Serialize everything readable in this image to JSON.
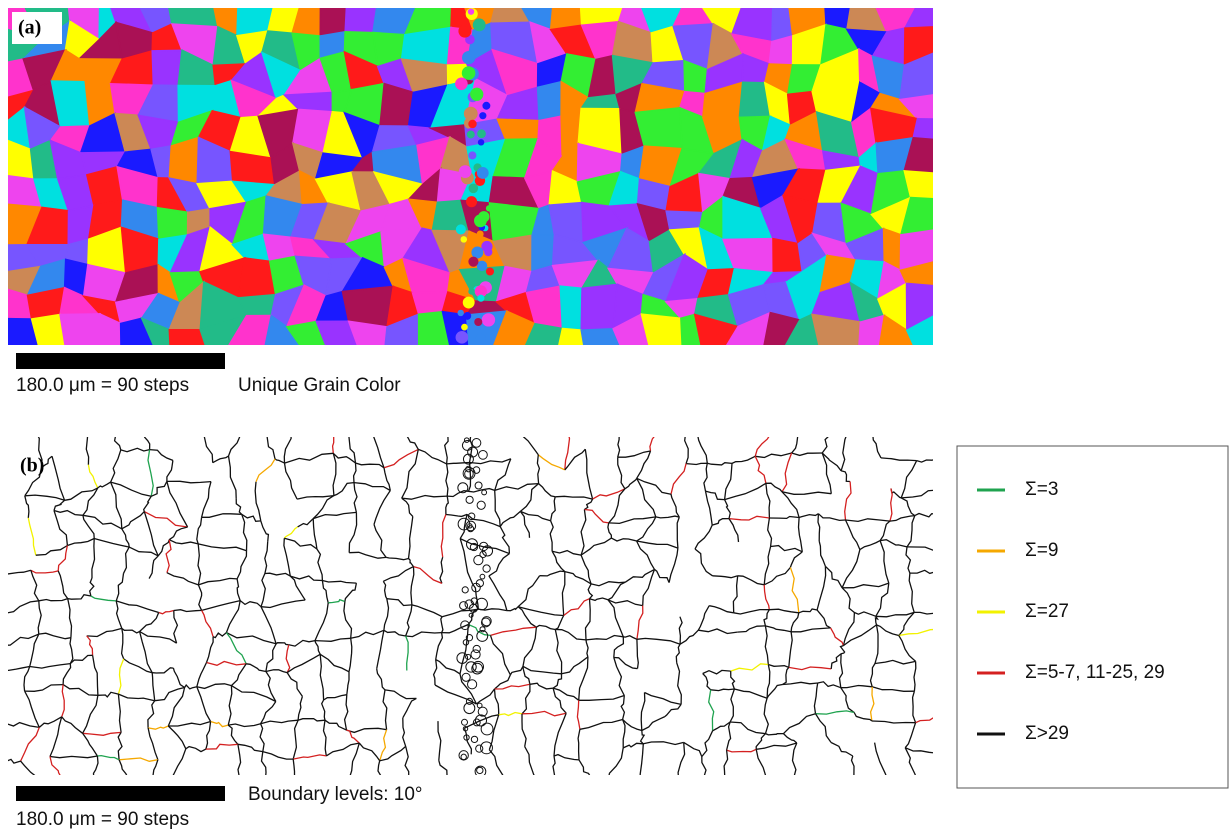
{
  "panel_a": {
    "label": "(a)",
    "scale_bar": "180.0 μm = 90 steps",
    "caption": "Unique Grain Color"
  },
  "panel_b": {
    "label": "(b)",
    "scale_bar": "180.0 μm = 90 steps",
    "caption": "Boundary levels: 10°"
  },
  "legend": {
    "items": [
      {
        "label": "Σ=3",
        "color": "#1fa34f"
      },
      {
        "label": "Σ=9",
        "color": "#f5a800"
      },
      {
        "label": "Σ=27",
        "color": "#f2f200"
      },
      {
        "label": "Σ=5-7, 11-25, 29",
        "color": "#d42020"
      },
      {
        "label": "Σ>29",
        "color": "#111111"
      }
    ]
  }
}
